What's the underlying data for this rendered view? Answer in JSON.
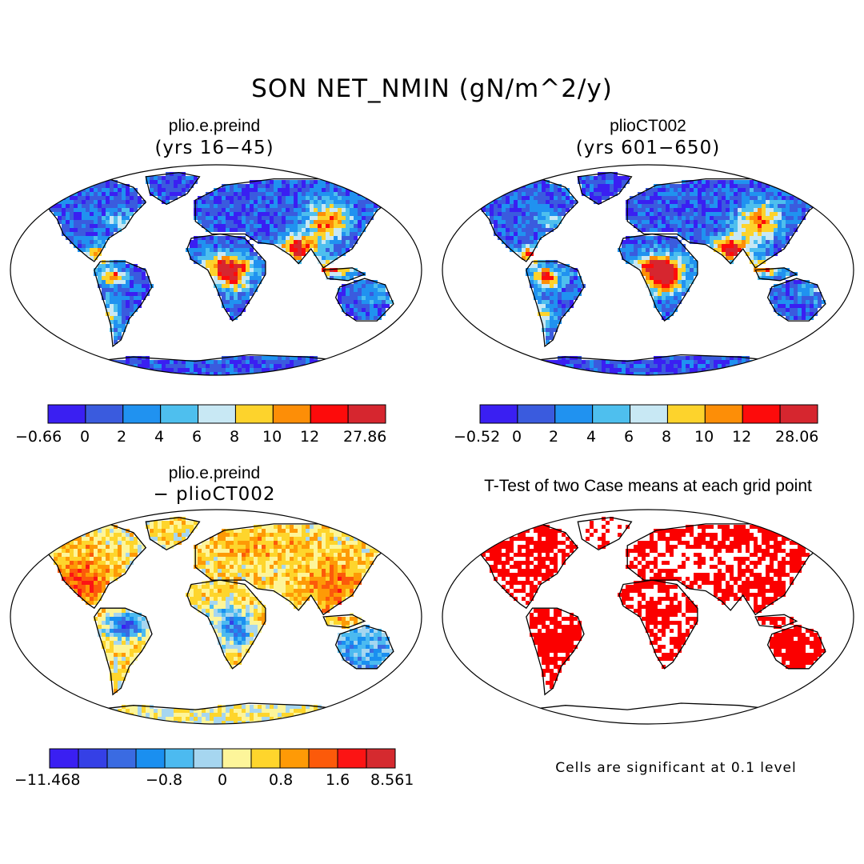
{
  "title": "SON NET_NMIN (gN/m^2/y)",
  "colors": {
    "pal9": [
      "#3a1ff2",
      "#3a5bde",
      "#2092f0",
      "#4ebfee",
      "#c8e8f4",
      "#fdd32c",
      "#fd8e07",
      "#fd0b0b",
      "#d6262f"
    ],
    "pal12": [
      "#3a1ff2",
      "#3540e6",
      "#3a6be2",
      "#1a8ff0",
      "#4cbaf0",
      "#a6d6f0",
      "#fdf59a",
      "#fed52c",
      "#fe9a06",
      "#fc5a0a",
      "#fc1414",
      "#d52a2f"
    ],
    "sig": "#fb0000",
    "ocean": "#ffffff"
  },
  "panels": [
    {
      "name": "plio.e.preind",
      "subtitle": "(yrs 16−45)",
      "map": "mean",
      "colorbar": {
        "palette": "pal9",
        "labels": [
          "−0.66",
          "0",
          "2",
          "4",
          "6",
          "8",
          "10",
          "12",
          "27.86"
        ]
      }
    },
    {
      "name": "plioCT002",
      "subtitle": "(yrs 601−650)",
      "map": "mean",
      "colorbar": {
        "palette": "pal9",
        "labels": [
          "−0.52",
          "0",
          "2",
          "4",
          "6",
          "8",
          "10",
          "12",
          "28.06"
        ]
      }
    },
    {
      "name": "plio.e.preind",
      "subtitle": "− plioCT002",
      "map": "diff",
      "colorbar": {
        "palette": "pal12",
        "labels": [
          "−11.468",
          "−0.8",
          "0",
          "0.8",
          "1.6",
          "8.561"
        ]
      }
    },
    {
      "name": "T-Test of two Case means at each grid point",
      "subtitle": "",
      "map": "ttest",
      "note": "Cells are significant at 0.1 level"
    }
  ]
}
